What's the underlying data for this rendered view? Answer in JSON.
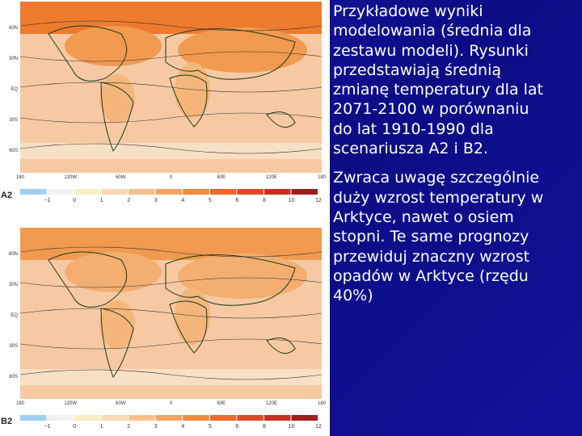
{
  "maps": [
    {
      "label": "A2",
      "lat_labels": [
        "60N",
        "30N",
        "EQ",
        "30S",
        "60S"
      ],
      "lon_labels": [
        "180",
        "120W",
        "60W",
        "0",
        "60E",
        "120E",
        "180"
      ],
      "legend_labels": [
        "−1",
        "0",
        "1",
        "2",
        "3",
        "4",
        "5",
        "6",
        "8",
        "10",
        "12"
      ]
    },
    {
      "label": "B2",
      "lat_labels": [
        "60N",
        "30N",
        "EQ",
        "30S",
        "60S"
      ],
      "lon_labels": [
        "180",
        "120W",
        "60W",
        "0",
        "60E",
        "120E",
        "180"
      ],
      "legend_labels": [
        "−1",
        "0",
        "1",
        "2",
        "3",
        "4",
        "5",
        "6",
        "8",
        "10",
        "12"
      ]
    }
  ],
  "paragraphs": [
    [
      "Przykładowe wyniki",
      "modelowania (średnia dla",
      "zestawu modeli). Rysunki",
      "przedstawiają średnią",
      "zmianę temperatury dla lat",
      "2071-2100 w porównaniu",
      "do lat 1910-1990 dla",
      "scenariusza A2 i B2."
    ],
    [
      "Zwraca uwagę szczególnie",
      "duży wzrost temperatury w",
      "Arktyce, nawet o osiem",
      "stopni. Te same prognozy",
      "przewiduj znaczny wzrost",
      "opadów w Arktyce (rzędu",
      "40%)"
    ]
  ]
}
